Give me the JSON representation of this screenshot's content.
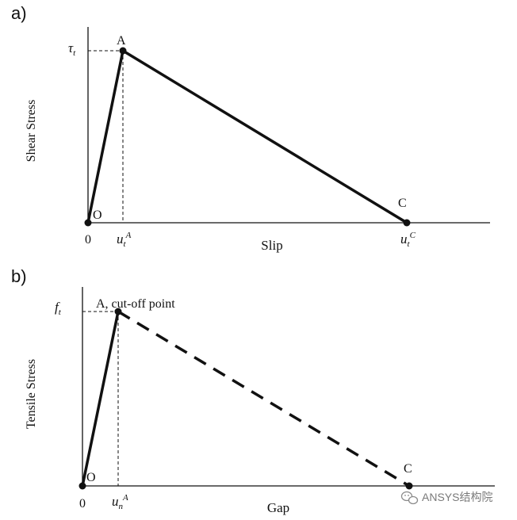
{
  "panel_a": {
    "label": "a)",
    "y_axis_title": "Shear Stress",
    "x_axis_title": "Slip",
    "y_symbol": {
      "main": "τ",
      "sub": "t"
    },
    "origin_tick": "0",
    "tick_uA": {
      "main": "u",
      "sub": "t",
      "sup": "A"
    },
    "tick_uC": {
      "main": "u",
      "sub": "t",
      "sup": "C"
    },
    "point_O": "O",
    "point_A": "A",
    "point_C": "C",
    "segment_OA_style": "solid",
    "segment_AC_style": "solid"
  },
  "panel_b": {
    "label": "b)",
    "y_axis_title": "Tensile Stress",
    "x_axis_title": "Gap",
    "y_symbol": {
      "main": "f",
      "sub": "t"
    },
    "origin_tick": "0",
    "tick_uA": {
      "main": "u",
      "sub": "n",
      "sup": "A"
    },
    "point_O": "O",
    "point_A": "A, cut-off point",
    "point_C": "C",
    "segment_OA_style": "solid",
    "segment_AC_style": "dashed"
  },
  "watermark": {
    "text": "ANSYS结构院",
    "icon": "wechat-icon"
  },
  "colors": {
    "ink": "#111111",
    "watermark": "#7a7a7a"
  }
}
